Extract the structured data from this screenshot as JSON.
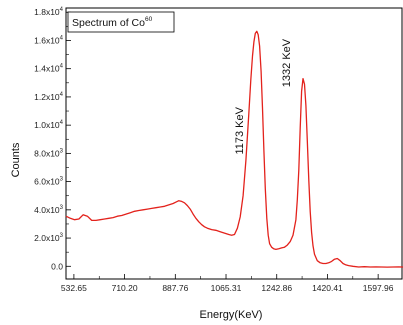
{
  "chart_data": {
    "type": "line",
    "title": "Spectrum of Co",
    "title_superscript": "60",
    "xlabel": "Energy(KeV)",
    "ylabel": "Counts",
    "xlim": [
      505,
      1685
    ],
    "ylim": [
      -900,
      18300
    ],
    "x_ticks": [
      532.65,
      710.2,
      887.76,
      1065.31,
      1242.86,
      1420.41,
      1597.96
    ],
    "x_tick_labels": [
      "532.65",
      "710.20",
      "887.76",
      "1065.31",
      "1242.86",
      "1420.41",
      "1597.96"
    ],
    "y_ticks": [
      0,
      2000,
      4000,
      6000,
      8000,
      10000,
      12000,
      14000,
      16000,
      18000
    ],
    "y_tick_labels": [
      {
        "mantissa": "0.0",
        "exp": ""
      },
      {
        "mantissa": "2.0x10",
        "exp": "3"
      },
      {
        "mantissa": "4.0x10",
        "exp": "3"
      },
      {
        "mantissa": "6.0x10",
        "exp": "3"
      },
      {
        "mantissa": "8.0x10",
        "exp": "3"
      },
      {
        "mantissa": "1.0x10",
        "exp": "4"
      },
      {
        "mantissa": "1.2x10",
        "exp": "4"
      },
      {
        "mantissa": "1.4x10",
        "exp": "4"
      },
      {
        "mantissa": "1.6x10",
        "exp": "4"
      },
      {
        "mantissa": "1.8x10",
        "exp": "4"
      }
    ],
    "annotations": [
      {
        "text": "1173 KeV",
        "x": 1173,
        "y": 9600
      },
      {
        "text": "1332 KeV",
        "x": 1332,
        "y": 14400
      }
    ],
    "series": [
      {
        "color": "#e3221c",
        "x": [
          505,
          520,
          535,
          550,
          565,
          580,
          595,
          610,
          625,
          640,
          655,
          670,
          685,
          700,
          715,
          730,
          745,
          760,
          775,
          790,
          805,
          820,
          835,
          850,
          865,
          880,
          890,
          900,
          910,
          920,
          930,
          940,
          950,
          960,
          970,
          980,
          990,
          1000,
          1015,
          1030,
          1045,
          1060,
          1075,
          1085,
          1095,
          1105,
          1115,
          1125,
          1135,
          1145,
          1152,
          1158,
          1163,
          1168,
          1173,
          1178,
          1183,
          1188,
          1193,
          1198,
          1203,
          1208,
          1213,
          1218,
          1225,
          1232,
          1240,
          1250,
          1260,
          1270,
          1280,
          1290,
          1300,
          1310,
          1315,
          1320,
          1325,
          1330,
          1335,
          1340,
          1345,
          1350,
          1355,
          1360,
          1365,
          1370,
          1375,
          1385,
          1395,
          1405,
          1415,
          1425,
          1435,
          1445,
          1455,
          1465,
          1475,
          1485,
          1495,
          1510,
          1530,
          1550,
          1570,
          1590,
          1610,
          1630,
          1650,
          1670,
          1685
        ],
        "y": [
          3550,
          3400,
          3300,
          3350,
          3650,
          3550,
          3250,
          3250,
          3300,
          3350,
          3400,
          3450,
          3550,
          3600,
          3700,
          3800,
          3900,
          3950,
          4000,
          4050,
          4100,
          4150,
          4200,
          4250,
          4350,
          4450,
          4550,
          4650,
          4600,
          4500,
          4300,
          4050,
          3700,
          3400,
          3150,
          2950,
          2800,
          2700,
          2600,
          2550,
          2450,
          2350,
          2250,
          2200,
          2250,
          2700,
          3500,
          5000,
          7500,
          10800,
          13200,
          14900,
          15900,
          16500,
          16650,
          16400,
          15600,
          13800,
          11200,
          8200,
          5500,
          3400,
          2200,
          1600,
          1350,
          1250,
          1200,
          1250,
          1300,
          1350,
          1500,
          1750,
          2200,
          3300,
          4700,
          6800,
          9800,
          12400,
          13300,
          12900,
          11400,
          8900,
          6100,
          3900,
          2400,
          1450,
          850,
          400,
          250,
          200,
          200,
          250,
          350,
          500,
          550,
          400,
          200,
          100,
          50,
          0,
          -50,
          -30,
          -50,
          -40,
          -50,
          -60,
          -50,
          -40,
          -50
        ]
      }
    ]
  }
}
